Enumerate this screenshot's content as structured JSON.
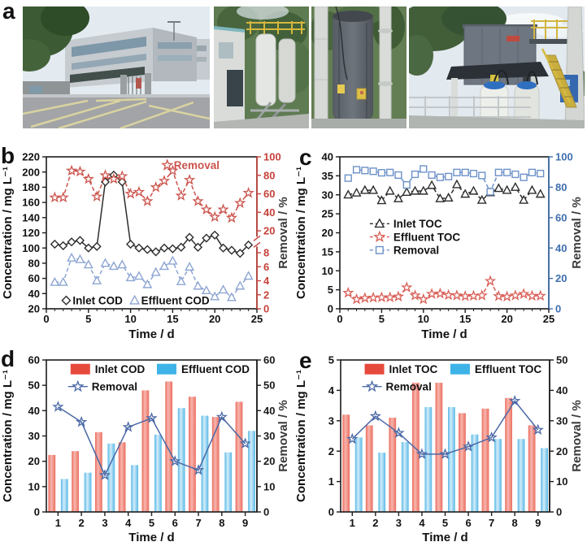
{
  "figure": {
    "panels": [
      {
        "label": "a"
      },
      {
        "label": "b"
      },
      {
        "label": "c"
      },
      {
        "label": "d"
      },
      {
        "label": "e"
      }
    ]
  },
  "photos": [
    {
      "alt": "factory buildings, entrance gate and road with yellow markings"
    },
    {
      "alt": "outdoor white treatment tanks beside a shed with yellow railing"
    },
    {
      "alt": "tall dark grey treatment column with white pipes"
    },
    {
      "alt": "grey container unit with yellow stairs and two white dosing tanks"
    }
  ],
  "chart_data": [
    {
      "id": "b",
      "type": "line",
      "xlabel": "Time / d",
      "ylabel_left": "Concentration / mg L⁻¹",
      "ylabel_right": "Removal / %",
      "x_axis": {
        "min": 0,
        "max": 25,
        "ticks": [
          0,
          5,
          10,
          15,
          20,
          25
        ],
        "minor_step": 1
      },
      "left_axis": {
        "min": 20,
        "max": 220,
        "ticks": [
          220,
          200,
          180,
          160,
          140,
          120,
          100,
          80,
          60,
          40,
          20
        ],
        "color": "#1a1a1a"
      },
      "right_axis": {
        "color": "#c6423b",
        "broken": true,
        "ticks": [
          100,
          80,
          60,
          40,
          20,
          8,
          6,
          4,
          2,
          0
        ],
        "segments": [
          {
            "v0": 100,
            "v1": 20,
            "f0": 0,
            "f1": 0.487
          },
          {
            "v0": 8,
            "v1": 0,
            "f0": 0.631,
            "f1": 1
          }
        ]
      },
      "x": [
        1,
        2,
        3,
        4,
        5,
        6,
        7,
        8,
        9,
        10,
        11,
        12,
        13,
        14,
        15,
        16,
        17,
        18,
        19,
        20,
        21,
        22,
        23,
        24
      ],
      "series": [
        {
          "name": "Inlet COD",
          "axis": "left",
          "marker": "diamond",
          "color": "#2d2d2d",
          "dash": false,
          "values": [
            105,
            103,
            108,
            110,
            100,
            102,
            187,
            196,
            187,
            105,
            100,
            98,
            95,
            100,
            99,
            101,
            114,
            101,
            113,
            117,
            100,
            97,
            93,
            104
          ]
        },
        {
          "name": "Effluent COD",
          "axis": "left",
          "marker": "triangle",
          "color": "#8da5d2",
          "dash": true,
          "values": [
            55,
            55,
            87,
            85,
            78,
            57,
            80,
            76,
            78,
            61,
            63,
            52,
            68,
            76,
            83,
            56,
            75,
            50,
            44,
            36,
            45,
            35,
            50,
            63
          ]
        },
        {
          "name": "Removal",
          "axis": "right",
          "marker": "star",
          "color": "#cb544d",
          "dash": true,
          "values": [
            56,
            56,
            85,
            84,
            76,
            57,
            80,
            76,
            79,
            60,
            62,
            52,
            67,
            74,
            85,
            58,
            75,
            52,
            43,
            35,
            43,
            34,
            50,
            61
          ]
        }
      ]
    },
    {
      "id": "c",
      "type": "line",
      "xlabel": "Time / d",
      "ylabel_left": "Concentration / mg L⁻¹",
      "ylabel_right": "Removal / %",
      "x_axis": {
        "min": 0,
        "max": 25,
        "ticks": [
          0,
          5,
          10,
          15,
          20,
          25
        ],
        "minor_step": 1
      },
      "left_axis": {
        "min": 0,
        "max": 40,
        "ticks": [
          40,
          35,
          30,
          25,
          20,
          15,
          10,
          5,
          0
        ],
        "color": "#1a1a1a"
      },
      "right_axis": {
        "color": "#3f6fae",
        "broken": false,
        "min": 0,
        "max": 100,
        "ticks": [
          100,
          80,
          60,
          40,
          20,
          0
        ]
      },
      "x": [
        1,
        2,
        3,
        4,
        5,
        6,
        7,
        8,
        9,
        10,
        11,
        12,
        13,
        14,
        15,
        16,
        17,
        18,
        19,
        20,
        21,
        22,
        23,
        24
      ],
      "series": [
        {
          "name": "Inlet TOC",
          "axis": "left",
          "marker": "triangle",
          "color": "#2d2d2d",
          "dash": true,
          "values": [
            30,
            30.5,
            31.2,
            31.2,
            28.5,
            31,
            29,
            30.7,
            31,
            31,
            32.5,
            29,
            29.2,
            32.7,
            30.2,
            31,
            28.6,
            30.6,
            31.7,
            31.2,
            32,
            28.6,
            31.2,
            30.2
          ]
        },
        {
          "name": "Effluent TOC",
          "axis": "left",
          "marker": "star",
          "color": "#d95f57",
          "dash": true,
          "values": [
            4.2,
            2.5,
            2.8,
            2.9,
            3,
            3,
            3.2,
            5.6,
            3.5,
            2.5,
            3.9,
            4,
            3.6,
            3.5,
            3.3,
            3.4,
            3.5,
            7.3,
            3.3,
            3.2,
            3.5,
            3.9,
            3.4,
            3.4
          ]
        },
        {
          "name": "Removal",
          "axis": "right",
          "marker": "square",
          "color": "#6d92c8",
          "dash": true,
          "values": [
            86,
            91.5,
            91,
            90.5,
            89.5,
            89.7,
            88,
            81.5,
            88.5,
            92,
            88,
            86.5,
            87,
            89.7,
            89.7,
            89,
            87.7,
            77,
            89.7,
            89.7,
            88.5,
            86.5,
            89.7,
            89
          ]
        }
      ]
    },
    {
      "id": "d",
      "type": "bar",
      "xlabel": "Time / d",
      "ylabel_left": "Concentration / mg L⁻¹",
      "ylabel_right": "Removal / %",
      "categories": [
        1,
        2,
        3,
        4,
        5,
        6,
        7,
        8,
        9
      ],
      "left_axis": {
        "min": 0,
        "max": 60,
        "ticks": [
          60,
          50,
          40,
          30,
          20,
          10,
          0
        ],
        "color": "#1a1a1a"
      },
      "right_axis": {
        "color": "#1a1a1a",
        "broken": false,
        "min": 0,
        "max": 60,
        "ticks": [
          60,
          50,
          40,
          30,
          20,
          10,
          0
        ]
      },
      "series": [
        {
          "name": "Inlet COD",
          "kind": "bar",
          "legend_color": "#e64a3c",
          "edge": "#eb6e60",
          "center": "#f8b6ae",
          "values": [
            22.5,
            24,
            31.5,
            27.5,
            48,
            51.5,
            45.5,
            37.5,
            43.5
          ]
        },
        {
          "name": "Effluent COD",
          "kind": "bar",
          "legend_color": "#3eb3e8",
          "edge": "#58b9e6",
          "center": "#d3ecf9",
          "values": [
            13,
            15.5,
            27,
            18.5,
            30.5,
            41,
            38,
            23.5,
            32
          ]
        },
        {
          "name": "Removal",
          "kind": "line",
          "axis": "right",
          "marker": "star",
          "color": "#4a68a5",
          "dash": false,
          "open": true,
          "values": [
            41.5,
            35.5,
            14.5,
            33.5,
            37,
            20,
            16.5,
            37.5,
            27
          ]
        }
      ]
    },
    {
      "id": "e",
      "type": "bar",
      "xlabel": "Time / d",
      "ylabel_left": "Concentration / mg L⁻¹",
      "ylabel_right": "Removal / %",
      "categories": [
        1,
        2,
        3,
        4,
        5,
        6,
        7,
        8,
        9
      ],
      "left_axis": {
        "min": 0,
        "max": 5,
        "ticks": [
          5,
          4,
          3,
          2,
          1,
          0
        ],
        "color": "#1a1a1a"
      },
      "right_axis": {
        "color": "#1a1a1a",
        "broken": false,
        "min": 0,
        "max": 50,
        "ticks": [
          50,
          40,
          30,
          20,
          10,
          0
        ]
      },
      "series": [
        {
          "name": "Inlet TOC",
          "kind": "bar",
          "legend_color": "#e64a3c",
          "edge": "#eb6e60",
          "center": "#f8b6ae",
          "values": [
            3.2,
            2.85,
            3.1,
            4.25,
            4.25,
            3.25,
            3.4,
            3.75,
            2.85
          ]
        },
        {
          "name": "Effluent TOC",
          "kind": "bar",
          "legend_color": "#3eb3e8",
          "edge": "#58b9e6",
          "center": "#d3ecf9",
          "values": [
            2.45,
            1.95,
            2.3,
            3.45,
            3.45,
            2.55,
            2.4,
            2.4,
            2.1
          ]
        },
        {
          "name": "Removal",
          "kind": "line",
          "axis": "right",
          "marker": "star",
          "color": "#4a68a5",
          "dash": false,
          "open": true,
          "values": [
            24,
            31.5,
            26,
            19,
            19,
            21.5,
            24.5,
            36.5,
            27
          ]
        }
      ]
    }
  ]
}
